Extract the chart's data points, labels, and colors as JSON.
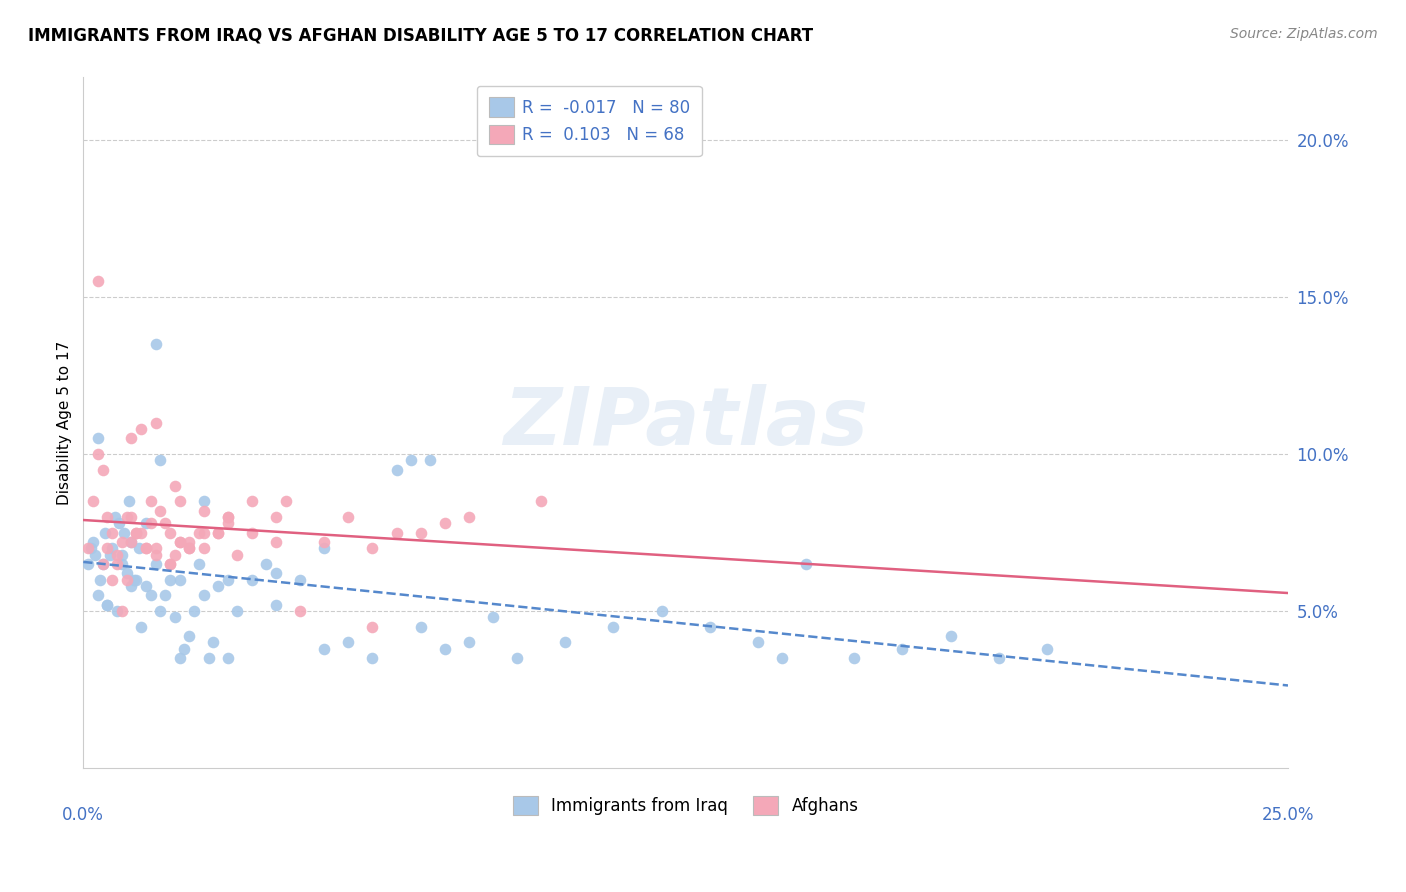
{
  "title": "IMMIGRANTS FROM IRAQ VS AFGHAN DISABILITY AGE 5 TO 17 CORRELATION CHART",
  "source": "Source: ZipAtlas.com",
  "ylabel": "Disability Age 5 to 17",
  "xlim": [
    0.0,
    25.0
  ],
  "ylim": [
    0.0,
    22.0
  ],
  "ytick_values": [
    5.0,
    10.0,
    15.0,
    20.0
  ],
  "iraq_color": "#a8c8e8",
  "afghan_color": "#f4a8b8",
  "iraq_line_color": "#5588cc",
  "afghan_line_color": "#e06080",
  "bottom_legend_iraq": "Immigrants from Iraq",
  "bottom_legend_afghan": "Afghans",
  "iraq_R": -0.017,
  "afghan_R": 0.103,
  "iraq_N": 80,
  "afghan_N": 68,
  "iraq_x": [
    0.1,
    0.15,
    0.2,
    0.25,
    0.3,
    0.35,
    0.4,
    0.45,
    0.5,
    0.55,
    0.6,
    0.65,
    0.7,
    0.75,
    0.8,
    0.85,
    0.9,
    0.95,
    1.0,
    1.05,
    1.1,
    1.15,
    1.2,
    1.3,
    1.4,
    1.5,
    1.6,
    1.7,
    1.8,
    1.9,
    2.0,
    2.1,
    2.2,
    2.3,
    2.4,
    2.5,
    2.6,
    2.7,
    2.8,
    3.0,
    3.2,
    3.5,
    3.8,
    4.0,
    4.5,
    5.0,
    5.5,
    6.0,
    6.5,
    7.0,
    7.5,
    8.0,
    9.0,
    10.0,
    11.0,
    12.0,
    13.0,
    14.0,
    14.5,
    15.0,
    16.0,
    17.0,
    18.0,
    19.0,
    20.0,
    0.3,
    0.5,
    0.8,
    1.0,
    1.3,
    1.5,
    2.0,
    2.5,
    3.0,
    4.0,
    5.0,
    6.8,
    7.2,
    8.5,
    1.6
  ],
  "iraq_y": [
    6.5,
    7.0,
    7.2,
    6.8,
    5.5,
    6.0,
    6.5,
    7.5,
    5.2,
    6.8,
    7.0,
    8.0,
    5.0,
    7.8,
    6.5,
    7.5,
    6.2,
    8.5,
    5.8,
    6.0,
    6.0,
    7.0,
    4.5,
    5.8,
    5.5,
    6.5,
    5.0,
    5.5,
    6.0,
    4.8,
    3.5,
    3.8,
    4.2,
    5.0,
    6.5,
    5.5,
    3.5,
    4.0,
    5.8,
    3.5,
    5.0,
    6.0,
    6.5,
    5.2,
    6.0,
    3.8,
    4.0,
    3.5,
    9.5,
    4.5,
    3.8,
    4.0,
    3.5,
    4.0,
    4.5,
    5.0,
    4.5,
    4.0,
    3.5,
    6.5,
    3.5,
    3.8,
    4.2,
    3.5,
    3.8,
    10.5,
    5.2,
    6.8,
    7.2,
    7.8,
    13.5,
    6.0,
    8.5,
    6.0,
    6.2,
    7.0,
    9.8,
    9.8,
    4.8,
    9.8
  ],
  "afghan_x": [
    0.1,
    0.2,
    0.3,
    0.4,
    0.5,
    0.6,
    0.7,
    0.8,
    0.9,
    1.0,
    1.1,
    1.2,
    1.3,
    1.4,
    1.5,
    1.6,
    1.7,
    1.8,
    1.9,
    2.0,
    2.2,
    2.5,
    2.8,
    3.0,
    3.5,
    4.0,
    5.0,
    6.5,
    7.5,
    9.5,
    0.5,
    1.0,
    1.5,
    2.0,
    2.5,
    3.0,
    0.8,
    1.2,
    1.8,
    2.2,
    0.6,
    1.0,
    1.4,
    1.8,
    2.2,
    2.8,
    3.5,
    4.5,
    6.0,
    8.0,
    0.3,
    0.7,
    1.1,
    1.5,
    2.0,
    2.5,
    3.2,
    4.0,
    5.5,
    7.0,
    0.4,
    0.9,
    1.3,
    1.9,
    2.4,
    3.0,
    4.2,
    6.0
  ],
  "afghan_y": [
    7.0,
    8.5,
    10.0,
    9.5,
    8.0,
    7.5,
    6.8,
    7.2,
    8.0,
    10.5,
    7.5,
    10.8,
    7.0,
    8.5,
    11.0,
    8.2,
    7.8,
    7.5,
    9.0,
    8.5,
    7.2,
    7.0,
    7.5,
    8.0,
    7.5,
    8.0,
    7.2,
    7.5,
    7.8,
    8.5,
    7.0,
    8.0,
    6.8,
    7.2,
    8.2,
    7.8,
    5.0,
    7.5,
    6.5,
    7.0,
    6.0,
    7.2,
    7.8,
    6.5,
    7.0,
    7.5,
    8.5,
    5.0,
    7.0,
    8.0,
    15.5,
    6.5,
    7.5,
    7.0,
    7.2,
    7.5,
    6.8,
    7.2,
    8.0,
    7.5,
    6.5,
    6.0,
    7.0,
    6.8,
    7.5,
    8.0,
    8.5,
    4.5
  ]
}
